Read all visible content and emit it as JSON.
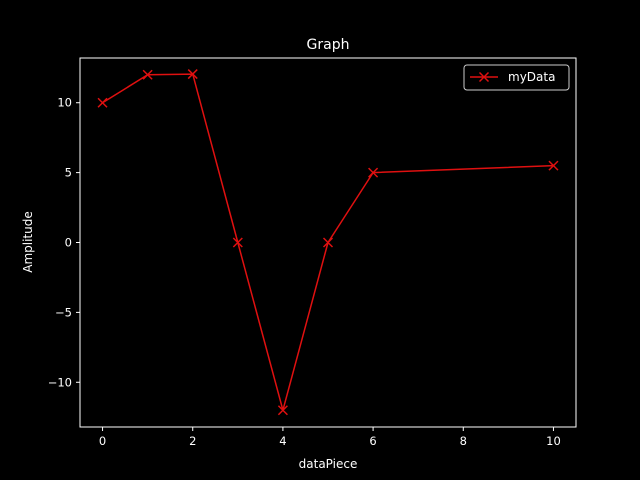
{
  "chart_data": {
    "type": "line",
    "title": "Graph",
    "xlabel": "dataPiece",
    "ylabel": "Amplitude",
    "xlim": [
      -0.5,
      10.5
    ],
    "ylim": [
      -13.2,
      13.2
    ],
    "xticks": [
      0,
      2,
      4,
      6,
      8,
      10
    ],
    "yticks": [
      -10,
      -5,
      0,
      5,
      10
    ],
    "xtick_labels": [
      "0",
      "2",
      "4",
      "6",
      "8",
      "10"
    ],
    "ytick_labels": [
      "−10",
      "−5",
      "0",
      "5",
      "10"
    ],
    "grid": false,
    "legend": {
      "position": "top-right"
    },
    "series": [
      {
        "name": "myData",
        "color": "#e01010",
        "marker": "x",
        "x": [
          0,
          1,
          2,
          3,
          4,
          5,
          6,
          10
        ],
        "y": [
          10,
          12,
          12.05,
          0,
          -12,
          0,
          5,
          5.5
        ]
      }
    ]
  },
  "colors": {
    "background": "#000000",
    "foreground": "#ffffff"
  }
}
